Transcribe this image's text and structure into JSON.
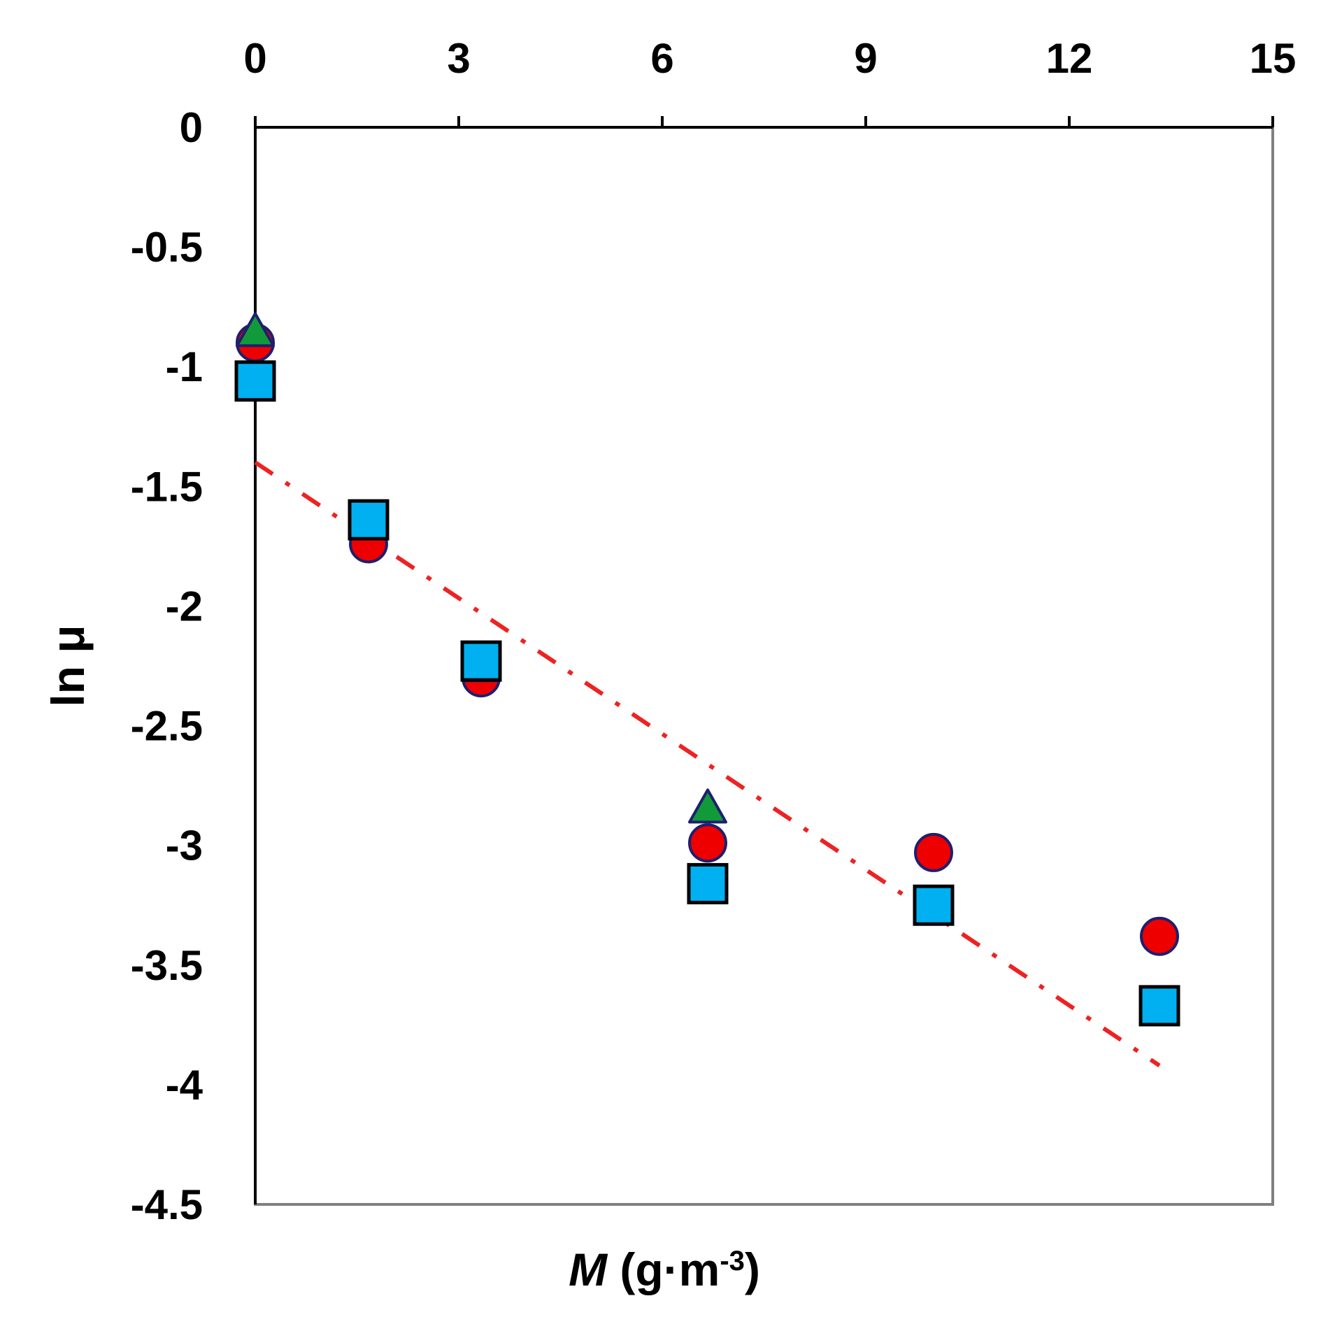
{
  "chart_data": {
    "type": "scatter",
    "title": "",
    "xlabel": {
      "symbol": "M",
      "unit_open": " (g·m",
      "unit_exp": "-3",
      "unit_close": ")"
    },
    "ylabel": "ln μ",
    "xlim": [
      0,
      15
    ],
    "ylim": [
      -4.5,
      0
    ],
    "x_axis_position": "top",
    "x_ticks": [
      "0",
      "3",
      "6",
      "9",
      "12",
      "15"
    ],
    "x_tick_values": [
      0,
      3,
      6,
      9,
      12,
      15
    ],
    "y_ticks": [
      "0",
      "-0.5",
      "-1",
      "-1.5",
      "-2",
      "-2.5",
      "-3",
      "-3.5",
      "-4",
      "-4.5"
    ],
    "y_tick_values": [
      0,
      -0.5,
      -1,
      -1.5,
      -2,
      -2.5,
      -3,
      -3.5,
      -4,
      -4.5
    ],
    "grid": false,
    "series": [
      {
        "name": "circles",
        "marker": "circle",
        "fill": "#ee0000",
        "stroke": "#1f1f6e",
        "x": [
          0,
          1.67,
          3.33,
          6.67,
          10,
          13.33
        ],
        "y": [
          -0.9,
          -1.74,
          -2.3,
          -2.99,
          -3.03,
          -3.38
        ]
      },
      {
        "name": "triangles",
        "marker": "triangle",
        "fill": "#119a3a",
        "stroke": "#1f1f6e",
        "x": [
          0,
          3.33,
          6.67
        ],
        "y": [
          -0.86,
          -2.26,
          -2.85
        ]
      },
      {
        "name": "squares",
        "marker": "square",
        "fill": "#00b0f0",
        "stroke": "#000000",
        "x": [
          0,
          1.67,
          3.33,
          6.67,
          10,
          13.33
        ],
        "y": [
          -1.06,
          -1.64,
          -2.23,
          -3.16,
          -3.25,
          -3.67
        ]
      }
    ],
    "fit_line": {
      "style": "dash-dot",
      "color": "#ee2222",
      "x": [
        0,
        13.33
      ],
      "y": [
        -1.4,
        -3.92
      ]
    }
  }
}
